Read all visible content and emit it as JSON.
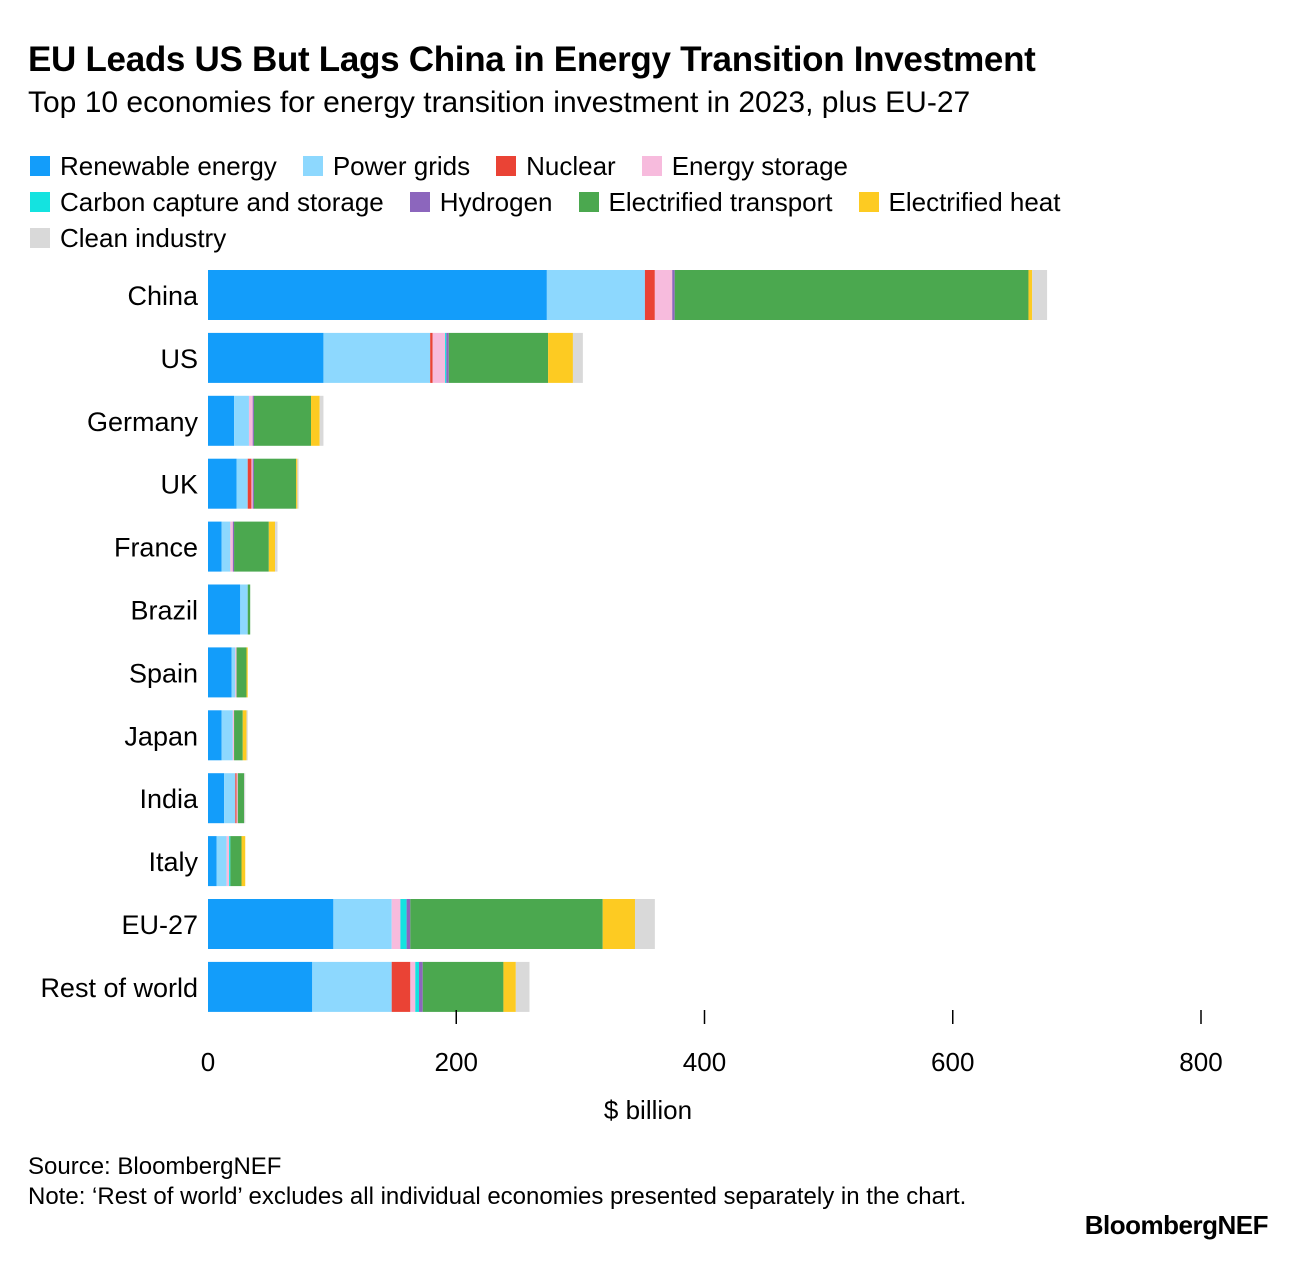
{
  "title": "EU Leads US But Lags China in Energy Transition Investment",
  "subtitle": "Top 10 economies for energy transition investment in 2023, plus EU-27",
  "source": "Source: BloombergNEF",
  "note": "Note: ‘Rest of world’ excludes all individual economies presented separately in the chart.",
  "brand": "BloombergNEF",
  "chart_data": {
    "type": "bar",
    "orientation": "horizontal",
    "stacked": true,
    "xlabel": "$ billion",
    "xlim": [
      0,
      800
    ],
    "xticks": [
      0,
      200,
      400,
      600,
      800
    ],
    "grid": false,
    "legend_position": "top",
    "categories": [
      "China",
      "US",
      "Germany",
      "UK",
      "France",
      "Brazil",
      "Spain",
      "Japan",
      "India",
      "Italy",
      "EU-27",
      "Rest of world"
    ],
    "series": [
      {
        "name": "Renewable energy",
        "color": "#139dfa",
        "values": [
          273,
          93,
          21,
          23,
          11,
          26,
          19,
          11,
          13,
          7,
          101,
          84
        ]
      },
      {
        "name": "Power grids",
        "color": "#8dd8fe",
        "values": [
          79,
          86,
          12,
          9,
          7,
          6,
          3,
          9,
          9,
          8,
          47,
          64
        ]
      },
      {
        "name": "Nuclear",
        "color": "#ea4335",
        "values": [
          8,
          2,
          0,
          3,
          0,
          0,
          0,
          0,
          1,
          0,
          0,
          15
        ]
      },
      {
        "name": "Energy storage",
        "color": "#f7bbdd",
        "values": [
          14,
          10,
          3,
          1,
          2,
          0,
          1,
          1,
          1,
          2,
          7,
          4
        ]
      },
      {
        "name": "Carbon capture and storage",
        "color": "#14e3e0",
        "values": [
          0,
          1,
          0,
          0,
          0,
          0,
          0,
          0,
          0,
          1,
          5,
          3
        ]
      },
      {
        "name": "Hydrogen",
        "color": "#8c66bd",
        "values": [
          2,
          2,
          1,
          1,
          1,
          0,
          0,
          0,
          0,
          0,
          3,
          3
        ]
      },
      {
        "name": "Electrified transport",
        "color": "#4ba84f",
        "values": [
          285,
          80,
          46,
          34,
          28,
          2,
          8,
          7,
          5,
          9,
          155,
          65
        ]
      },
      {
        "name": "Electrified heat",
        "color": "#fdcb22",
        "values": [
          3,
          20,
          7,
          1,
          5,
          0,
          1,
          3,
          0,
          3,
          26,
          10
        ]
      },
      {
        "name": "Clean industry",
        "color": "#d9d9d9",
        "values": [
          12,
          8,
          3,
          1,
          2,
          0,
          0,
          1,
          1,
          0,
          16,
          11
        ]
      }
    ]
  }
}
